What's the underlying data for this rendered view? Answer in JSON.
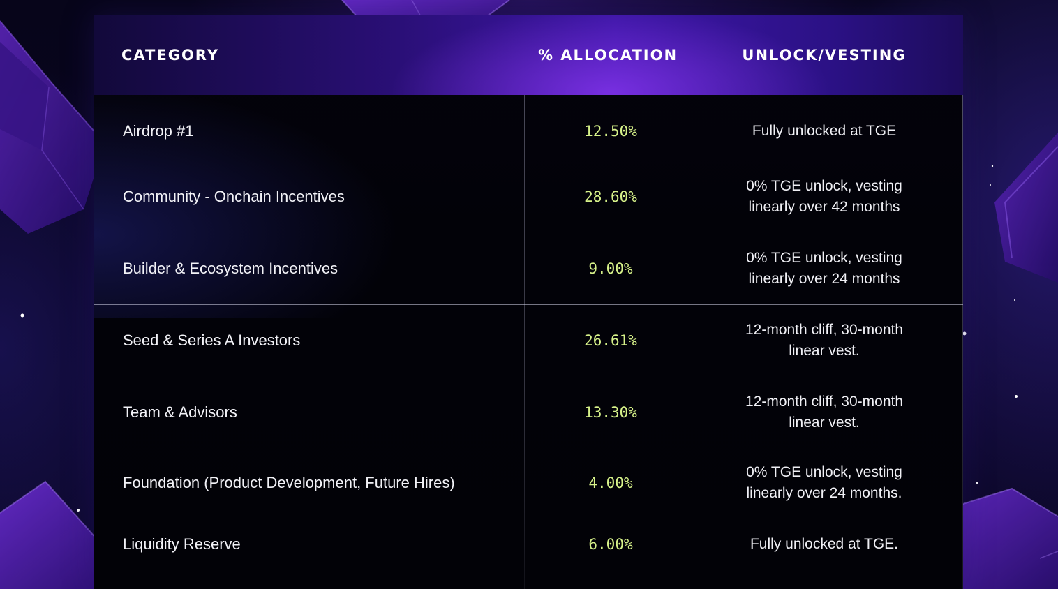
{
  "header": {
    "category": "CATEGORY",
    "allocation": "% ALLOCATION",
    "vesting": "UNLOCK/VESTING"
  },
  "rows": [
    {
      "category": "Airdrop #1",
      "allocation": "12.50%",
      "vesting_line1": "Fully unlocked at TGE",
      "vesting_line2": ""
    },
    {
      "category": "Community - Onchain Incentives",
      "allocation": "28.60%",
      "vesting_line1": "0% TGE unlock, vesting",
      "vesting_line2": "linearly over 42 months"
    },
    {
      "category": "Builder & Ecosystem Incentives",
      "allocation": "9.00%",
      "vesting_line1": "0% TGE unlock, vesting",
      "vesting_line2": "linearly over 24 months"
    },
    {
      "category": "Seed & Series A Investors",
      "allocation": "26.61%",
      "vesting_line1": "12-month cliff, 30-month",
      "vesting_line2": "linear vest."
    },
    {
      "category": "Team & Advisors",
      "allocation": "13.30%",
      "vesting_line1": "12-month cliff, 30-month",
      "vesting_line2": "linear vest."
    },
    {
      "category": "Foundation (Product Development, Future Hires)",
      "allocation": "4.00%",
      "vesting_line1": "0% TGE unlock, vesting",
      "vesting_line2": "linearly over 24 months."
    },
    {
      "category": "Liquidity Reserve",
      "allocation": "6.00%",
      "vesting_line1": "Fully unlocked at TGE.",
      "vesting_line2": ""
    }
  ],
  "colors": {
    "allocation_text": "#d7f28a",
    "header_accent": "#3d16a6",
    "background": "#05030f"
  },
  "decor": {
    "shapes": [
      "cube-icon",
      "star-icon"
    ]
  }
}
